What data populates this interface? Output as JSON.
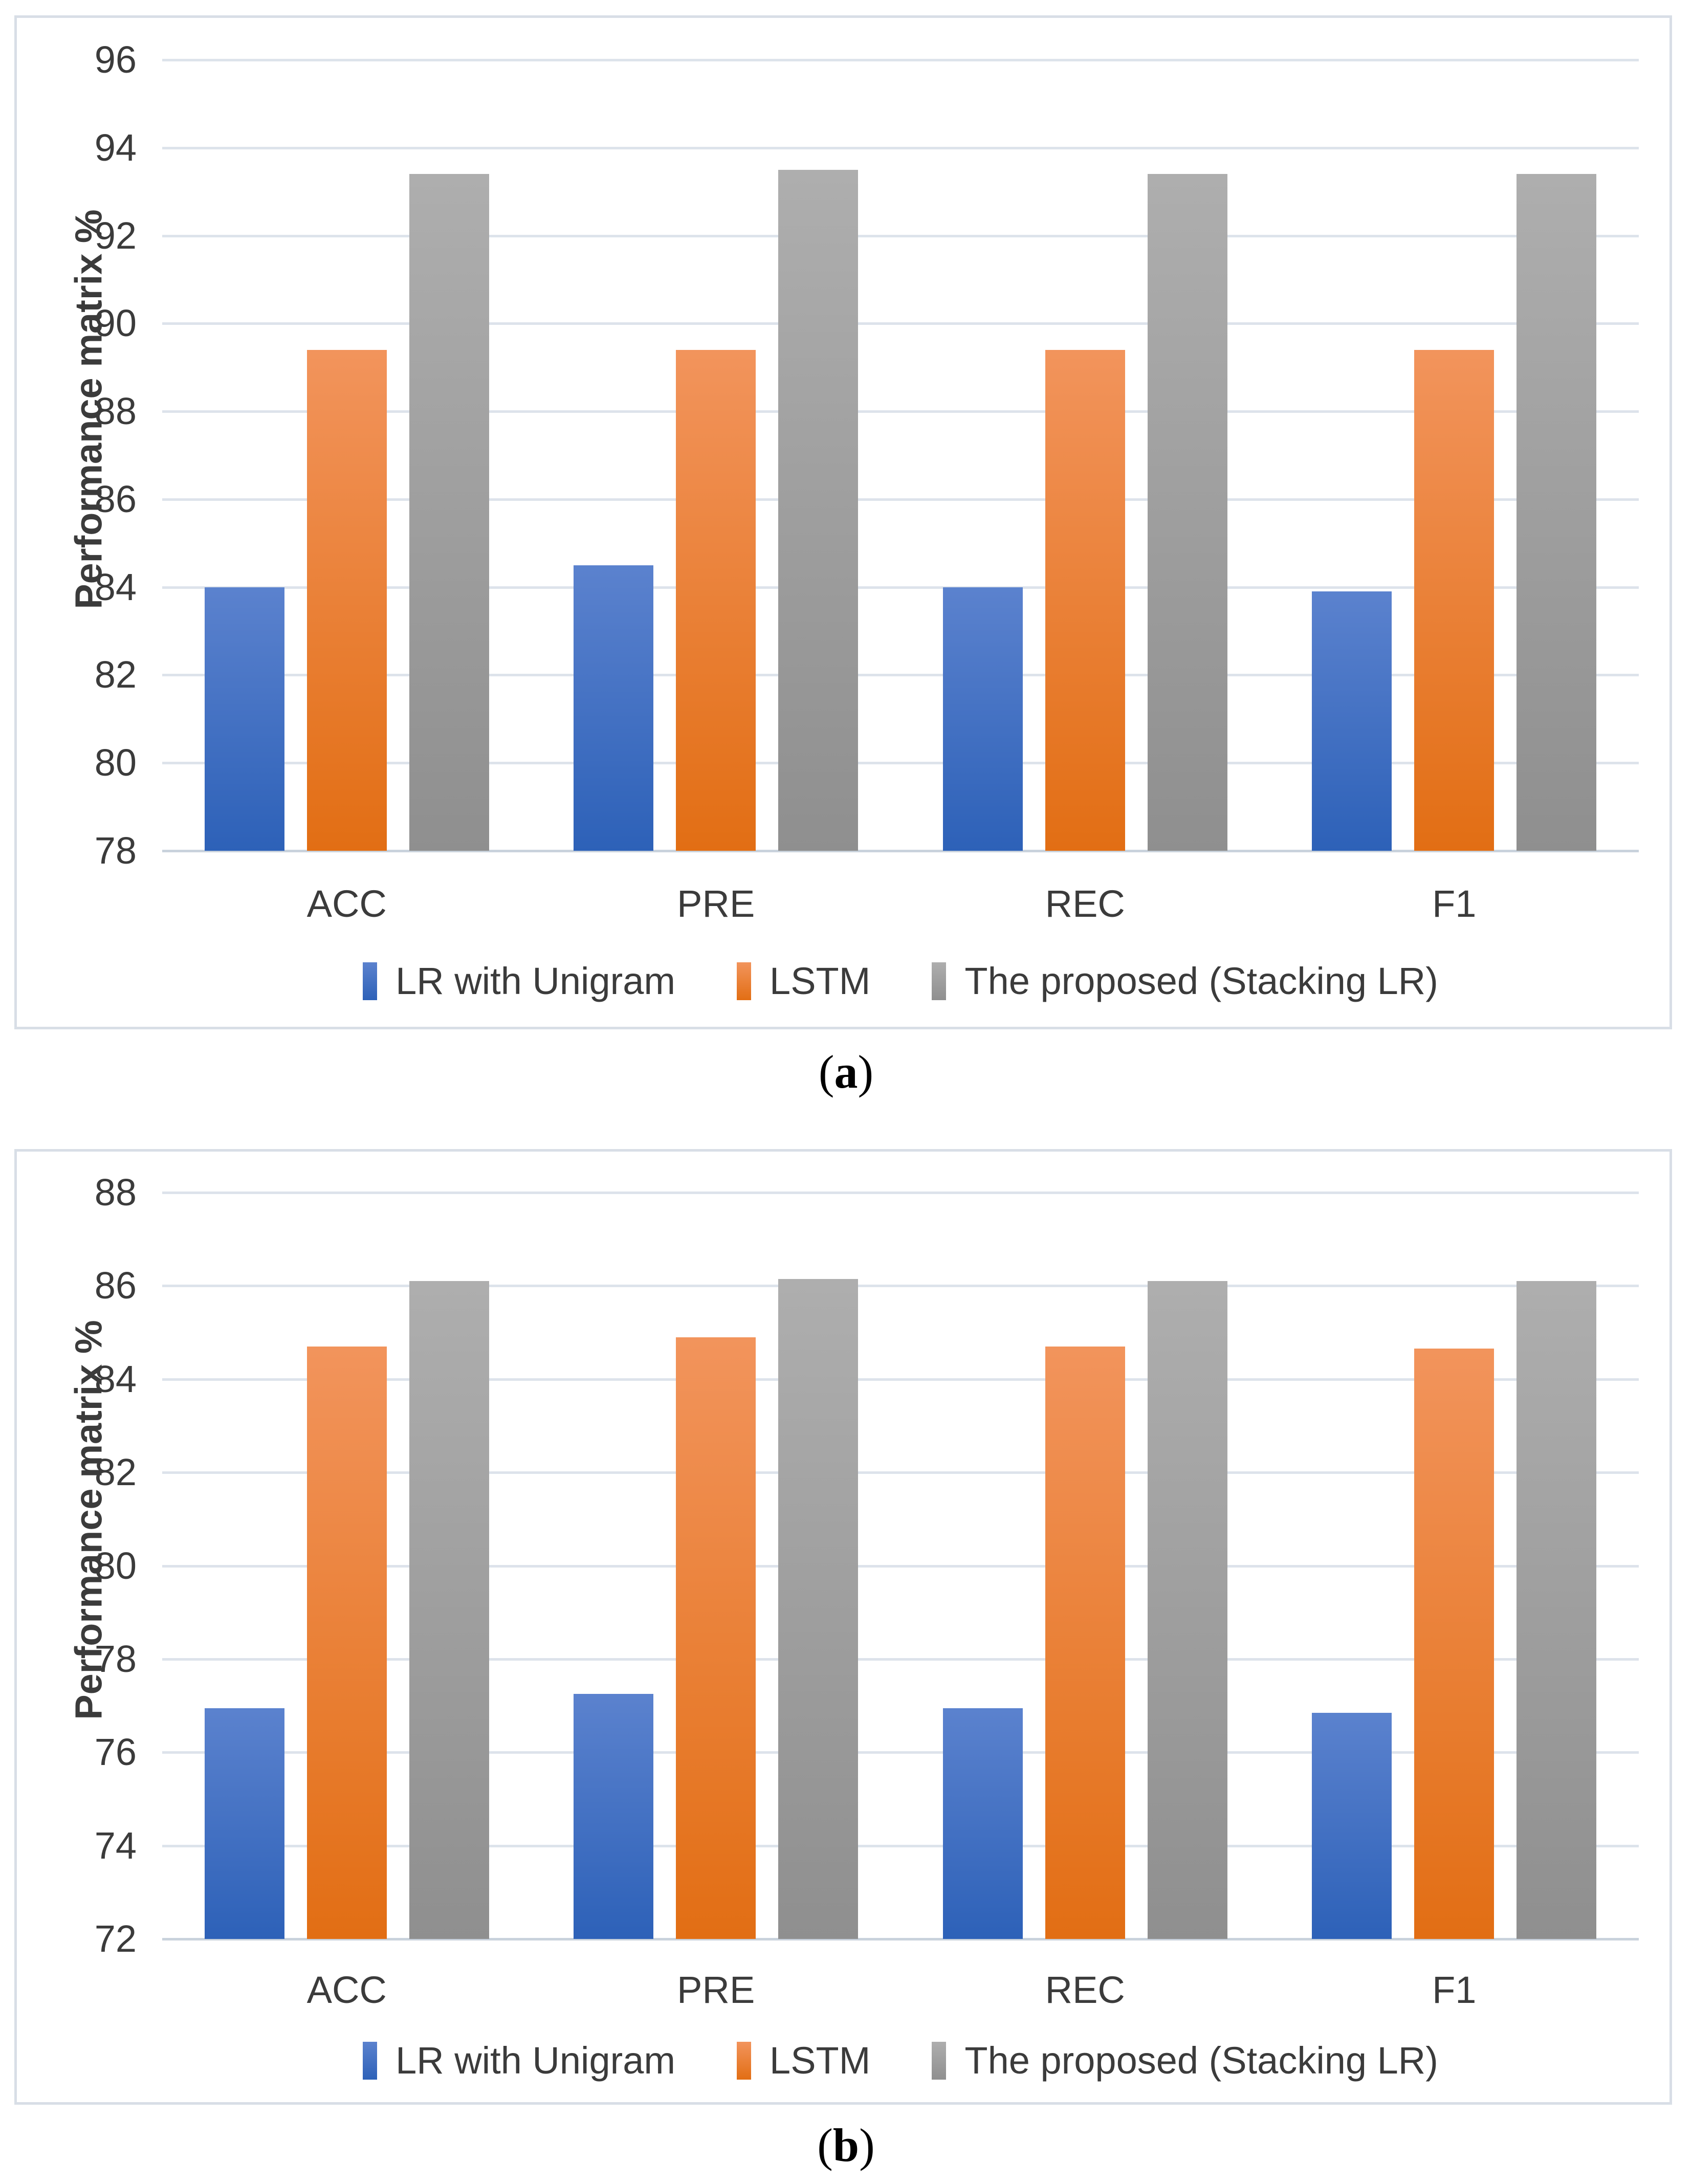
{
  "figure": {
    "captions": [
      {
        "open": "(",
        "letter": "a",
        "close": ")"
      },
      {
        "open": "(",
        "letter": "b",
        "close": ")"
      }
    ]
  },
  "style": {
    "panel_border_color": "#d8dee6",
    "gridline_color": "#dde3eb",
    "axis_line_color": "#c9d2dc",
    "text_color": "#3b3b3b",
    "series_colors": {
      "lr_with_unigram": "#4472c4",
      "lstm": "#ed7d31",
      "proposed_stacking_lr": "#a5a5a5"
    }
  },
  "chart_data": [
    {
      "type": "bar",
      "title": "",
      "xlabel": "",
      "ylabel": "Performance matrix %",
      "categories": [
        "ACC",
        "PRE",
        "REC",
        "F1"
      ],
      "series": [
        {
          "name": "LR with Unigram",
          "color_top": "#5b82ce",
          "color_bottom": "#2d61b8",
          "values": [
            84.0,
            84.5,
            84.0,
            83.9
          ]
        },
        {
          "name": "LSTM",
          "color_top": "#f2945c",
          "color_bottom": "#e26e14",
          "values": [
            89.4,
            89.4,
            89.4,
            89.4
          ]
        },
        {
          "name": "The proposed (Stacking LR)",
          "color_top": "#aeaeae",
          "color_bottom": "#8f8f8f",
          "values": [
            93.4,
            93.5,
            93.4,
            93.4
          ]
        }
      ],
      "ylim": [
        78,
        96
      ],
      "ytick_step": 2,
      "yticks": [
        96,
        94,
        92,
        90,
        88,
        86,
        84,
        82,
        80,
        78
      ],
      "grid": true,
      "legend_position": "bottom"
    },
    {
      "type": "bar",
      "title": "",
      "xlabel": "",
      "ylabel": "Performance matrix %",
      "categories": [
        "ACC",
        "PRE",
        "REC",
        "F1"
      ],
      "series": [
        {
          "name": "LR with Unigram",
          "color_top": "#5b82ce",
          "color_bottom": "#2d61b8",
          "values": [
            76.95,
            77.25,
            76.95,
            76.85
          ]
        },
        {
          "name": "LSTM",
          "color_top": "#f2945c",
          "color_bottom": "#e26e14",
          "values": [
            84.7,
            84.9,
            84.7,
            84.65
          ]
        },
        {
          "name": "The proposed (Stacking LR)",
          "color_top": "#aeaeae",
          "color_bottom": "#8f8f8f",
          "values": [
            86.1,
            86.15,
            86.1,
            86.1
          ]
        }
      ],
      "ylim": [
        72,
        88
      ],
      "ytick_step": 2,
      "yticks": [
        88,
        86,
        84,
        82,
        80,
        78,
        76,
        74,
        72
      ],
      "grid": true,
      "legend_position": "bottom"
    }
  ]
}
